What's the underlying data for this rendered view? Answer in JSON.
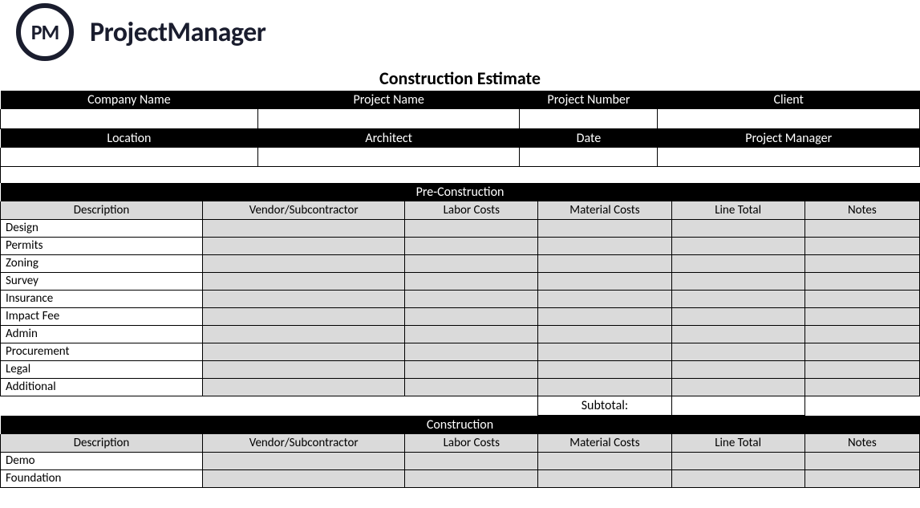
{
  "brand": {
    "logo_initials": "PM",
    "name": "ProjectManager"
  },
  "title": "Construction Estimate",
  "colors": {
    "black": "#000000",
    "white": "#ffffff",
    "gray_fill": "#dadada",
    "brand_dark": "#1a1d2e"
  },
  "typography": {
    "title_fontsize_pt": 16,
    "header_fontsize_pt": 12,
    "body_fontsize_pt": 11,
    "brand_fontsize_pt": 26,
    "font_family": "Calibri"
  },
  "layout": {
    "info_col_widths": [
      "28%",
      "28.5%",
      "15%",
      "28.5%"
    ],
    "data_col_widths": [
      "22%",
      "22%",
      "14.5%",
      "14.5%",
      "14.5%",
      "12.5%"
    ]
  },
  "info_section": {
    "row1": {
      "headers": [
        "Company Name",
        "Project Name",
        "Project Number",
        "Client"
      ],
      "values": [
        "",
        "",
        "",
        ""
      ]
    },
    "row2": {
      "headers": [
        "Location",
        "Architect",
        "Date",
        "Project Manager"
      ],
      "values": [
        "",
        "",
        "",
        ""
      ]
    }
  },
  "sections": [
    {
      "title": "Pre-Construction",
      "columns": [
        "Description",
        "Vendor/Subcontractor",
        "Labor Costs",
        "Material Costs",
        "Line Total",
        "Notes"
      ],
      "rows": [
        {
          "description": "Design",
          "vendor": "",
          "labor": "",
          "material": "",
          "total": "",
          "notes": ""
        },
        {
          "description": "Permits",
          "vendor": "",
          "labor": "",
          "material": "",
          "total": "",
          "notes": ""
        },
        {
          "description": "Zoning",
          "vendor": "",
          "labor": "",
          "material": "",
          "total": "",
          "notes": ""
        },
        {
          "description": "Survey",
          "vendor": "",
          "labor": "",
          "material": "",
          "total": "",
          "notes": ""
        },
        {
          "description": "Insurance",
          "vendor": "",
          "labor": "",
          "material": "",
          "total": "",
          "notes": ""
        },
        {
          "description": "Impact Fee",
          "vendor": "",
          "labor": "",
          "material": "",
          "total": "",
          "notes": ""
        },
        {
          "description": "Admin",
          "vendor": "",
          "labor": "",
          "material": "",
          "total": "",
          "notes": ""
        },
        {
          "description": "Procurement",
          "vendor": "",
          "labor": "",
          "material": "",
          "total": "",
          "notes": ""
        },
        {
          "description": "Legal",
          "vendor": "",
          "labor": "",
          "material": "",
          "total": "",
          "notes": ""
        },
        {
          "description": "Additional",
          "vendor": "",
          "labor": "",
          "material": "",
          "total": "",
          "notes": ""
        }
      ],
      "subtotal_label": "Subtotal:",
      "subtotal_value": ""
    },
    {
      "title": "Construction",
      "columns": [
        "Description",
        "Vendor/Subcontractor",
        "Labor Costs",
        "Material Costs",
        "Line Total",
        "Notes"
      ],
      "rows": [
        {
          "description": "Demo",
          "vendor": "",
          "labor": "",
          "material": "",
          "total": "",
          "notes": ""
        },
        {
          "description": "Foundation",
          "vendor": "",
          "labor": "",
          "material": "",
          "total": "",
          "notes": ""
        }
      ]
    }
  ]
}
